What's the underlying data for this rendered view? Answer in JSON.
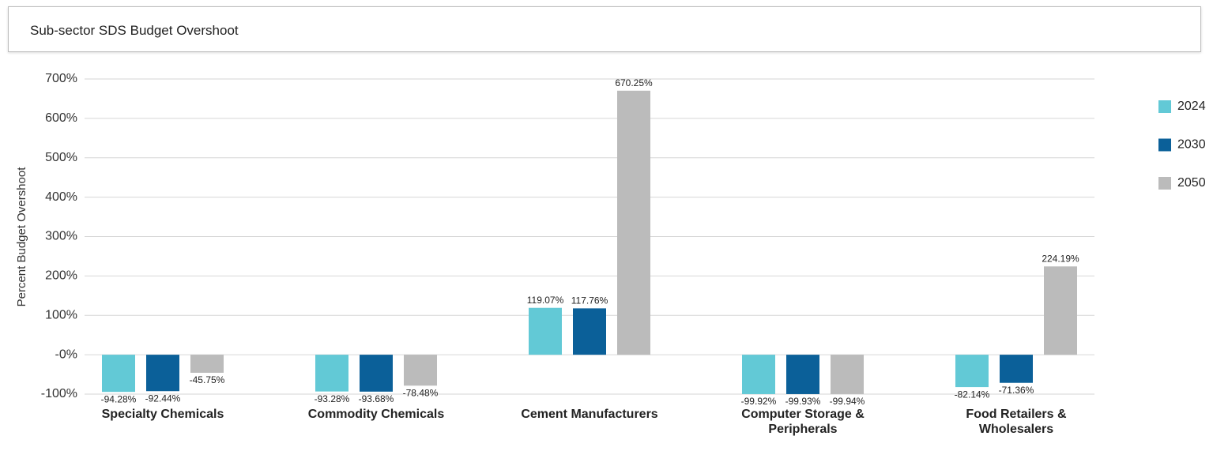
{
  "chart_data": {
    "type": "bar",
    "title": "Sub-sector SDS Budget Overshoot",
    "y_label": "Percent Budget Overshoot",
    "categories": [
      "Specialty Chemicals",
      "Commodity Chemicals",
      "Cement Manufacturers",
      "Computer Storage & Peripherals",
      "Food Retailers & Wholesalers"
    ],
    "series": [
      {
        "name": "2024",
        "color": "#62c9d6",
        "values": [
          -94.28,
          -93.28,
          119.07,
          -99.92,
          -82.14
        ],
        "value_labels": [
          "-94.28%",
          "-93.28%",
          "119.07%",
          "-99.92%",
          "-82.14%"
        ]
      },
      {
        "name": "2030",
        "color": "#0b6099",
        "values": [
          -92.44,
          -93.68,
          117.76,
          -99.93,
          -71.36
        ],
        "value_labels": [
          "-92.44%",
          "-93.68%",
          "117.76%",
          "-99.93%",
          "-71.36%"
        ]
      },
      {
        "name": "2050",
        "color": "#bbbbbb",
        "values": [
          -45.75,
          -78.48,
          670.25,
          -99.94,
          224.19
        ],
        "value_labels": [
          "-45.75%",
          "-78.48%",
          "670.25%",
          "-99.94%",
          "224.19%"
        ]
      }
    ],
    "ylim": [
      -100,
      700
    ],
    "yticks": [
      {
        "value": -100,
        "label": "-100%"
      },
      {
        "value": 0,
        "label": "-0%"
      },
      {
        "value": 100,
        "label": "100%"
      },
      {
        "value": 200,
        "label": "200%"
      },
      {
        "value": 300,
        "label": "300%"
      },
      {
        "value": 400,
        "label": "400%"
      },
      {
        "value": 500,
        "label": "500%"
      },
      {
        "value": 600,
        "label": "600%"
      },
      {
        "value": 700,
        "label": "700%"
      }
    ],
    "grid": true,
    "legend": "right"
  }
}
